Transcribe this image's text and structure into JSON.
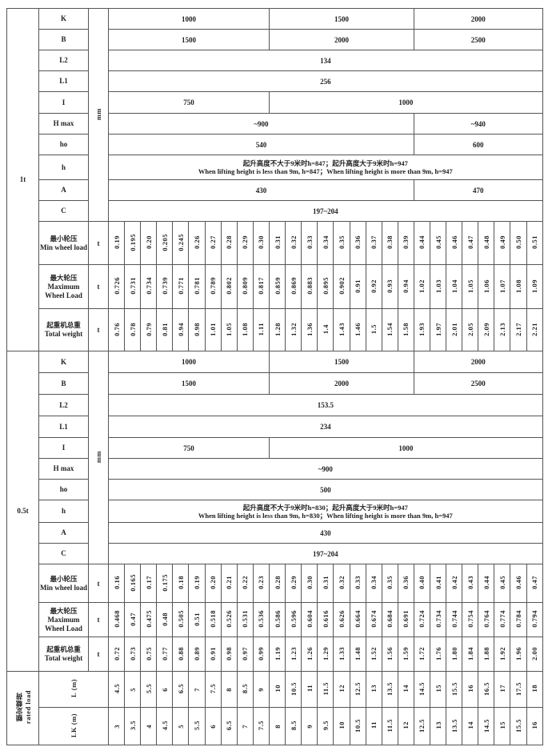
{
  "sections": [
    {
      "load": "1t",
      "unit_dims": "mm",
      "unit_loads": "t",
      "dims": [
        {
          "label": "K",
          "cells": [
            {
              "text": "1000",
              "span": 10
            },
            {
              "text": "1500",
              "span": 9
            },
            {
              "text": "2000",
              "span": 8
            }
          ]
        },
        {
          "label": "B",
          "cells": [
            {
              "text": "1500",
              "span": 10
            },
            {
              "text": "2000",
              "span": 9
            },
            {
              "text": "2500",
              "span": 8
            }
          ]
        },
        {
          "label": "L2",
          "cells": [
            {
              "text": "134",
              "span": 27
            }
          ]
        },
        {
          "label": "L1",
          "cells": [
            {
              "text": "256",
              "span": 27
            }
          ]
        },
        {
          "label": "I",
          "cells": [
            {
              "text": "750",
              "span": 10
            },
            {
              "text": "1000",
              "span": 17
            }
          ]
        },
        {
          "label": "H max",
          "cells": [
            {
              "text": "~900",
              "span": 19
            },
            {
              "text": "~940",
              "span": 8
            }
          ]
        },
        {
          "label": "ho",
          "cells": [
            {
              "text": "540",
              "span": 19
            },
            {
              "text": "600",
              "span": 8
            }
          ]
        },
        {
          "label": "h",
          "cells": [
            {
              "text": "起升高度不大于9米时h=847；起升高度大于9米时h=947",
              "text2": "When lifting height is less than 9m, h=847；When lifting height is more than 9m, h=947",
              "span": 27
            }
          ]
        },
        {
          "label": "A",
          "cells": [
            {
              "text": "430",
              "span": 19
            },
            {
              "text": "470",
              "span": 8
            }
          ]
        },
        {
          "label": "C",
          "cells": [
            {
              "text": "197~204",
              "span": 27
            }
          ]
        }
      ],
      "loads": [
        {
          "label_cn": "最小轮压",
          "label_en": "Min wheel load",
          "values": [
            "0.19",
            "0.195",
            "0.20",
            "0.205",
            "0.245",
            "0.26",
            "0.27",
            "0.28",
            "0.29",
            "0.30",
            "0.31",
            "0.32",
            "0.33",
            "0.34",
            "0.35",
            "0.36",
            "0.37",
            "0.38",
            "0.39",
            "0.44",
            "0.45",
            "0.46",
            "0.47",
            "0.48",
            "0.49",
            "0.50",
            "0.51"
          ]
        },
        {
          "label_cn": "最大轮压",
          "label_en": "Maximum Wheel Load",
          "values": [
            "0.726",
            "0.731",
            "0.734",
            "0.739",
            "0.771",
            "0.781",
            "0.789",
            "0.802",
            "0.809",
            "0.817",
            "0.859",
            "0.869",
            "0.883",
            "0.895",
            "0.902",
            "0.91",
            "0.92",
            "0.93",
            "0.94",
            "1.02",
            "1.03",
            "1.04",
            "1.05",
            "1.06",
            "1.07",
            "1.08",
            "1.09"
          ]
        },
        {
          "label_cn": "起重机总重",
          "label_en": "Total weight",
          "values": [
            "0.76",
            "0.78",
            "0.79",
            "0.81",
            "0.94",
            "0.98",
            "1.01",
            "1.05",
            "1.08",
            "1.11",
            "1.28",
            "1.32",
            "1.36",
            "1.4",
            "1.43",
            "1.46",
            "1.5",
            "1.54",
            "1.58",
            "1.93",
            "1.97",
            "2.01",
            "2.05",
            "2.09",
            "2.13",
            "2.17",
            "2.21"
          ]
        }
      ]
    },
    {
      "load": "0.5t",
      "unit_dims": "mm",
      "unit_loads": "t",
      "dims": [
        {
          "label": "K",
          "cells": [
            {
              "text": "1000",
              "span": 10
            },
            {
              "text": "1500",
              "span": 9
            },
            {
              "text": "2000",
              "span": 8
            }
          ]
        },
        {
          "label": "B",
          "cells": [
            {
              "text": "1500",
              "span": 10
            },
            {
              "text": "2000",
              "span": 9
            },
            {
              "text": "2500",
              "span": 8
            }
          ]
        },
        {
          "label": "L2",
          "cells": [
            {
              "text": "153.5",
              "span": 27
            }
          ]
        },
        {
          "label": "L1",
          "cells": [
            {
              "text": "234",
              "span": 27
            }
          ]
        },
        {
          "label": "I",
          "cells": [
            {
              "text": "750",
              "span": 10
            },
            {
              "text": "1000",
              "span": 17
            }
          ]
        },
        {
          "label": "H max",
          "cells": [
            {
              "text": "~900",
              "span": 27
            }
          ]
        },
        {
          "label": "ho",
          "cells": [
            {
              "text": "500",
              "span": 27
            }
          ]
        },
        {
          "label": "h",
          "cells": [
            {
              "text": "起升高度不大于9米时h=830；起升高度大于9米时h=947",
              "text2": "When lifting height is less than 9m, h=830；When lifting height is more than 9m, h=947",
              "span": 27
            }
          ]
        },
        {
          "label": "A",
          "cells": [
            {
              "text": "430",
              "span": 27
            }
          ]
        },
        {
          "label": "C",
          "cells": [
            {
              "text": "197~204",
              "span": 27
            }
          ]
        }
      ],
      "loads": [
        {
          "label_cn": "最小轮压",
          "label_en": "Min wheel load",
          "values": [
            "0.16",
            "0.165",
            "0.17",
            "0.175",
            "0.18",
            "0.19",
            "0.20",
            "0.21",
            "0.22",
            "0.23",
            "0.28",
            "0.29",
            "0.30",
            "0.31",
            "0.32",
            "0.33",
            "0.34",
            "0.35",
            "0.36",
            "0.40",
            "0.41",
            "0.42",
            "0.43",
            "0.44",
            "0.45",
            "0.46",
            "0.47"
          ]
        },
        {
          "label_cn": "最大轮压",
          "label_en": "Maximum Wheel Load",
          "values": [
            "0.468",
            "0.47",
            "0.475",
            "0.48",
            "0.505",
            "0.51",
            "0.518",
            "0.526",
            "0.531",
            "0.536",
            "0.586",
            "0.596",
            "0.604",
            "0.616",
            "0.626",
            "0.664",
            "0.674",
            "0.684",
            "0.691",
            "0.724",
            "0.734",
            "0.744",
            "0.754",
            "0.764",
            "0.774",
            "0.784",
            "0.794"
          ]
        },
        {
          "label_cn": "起重机总重",
          "label_en": "Total weight",
          "values": [
            "0.72",
            "0.73",
            "0.75",
            "0.77",
            "0.88",
            "0.89",
            "0.91",
            "0.98",
            "0.97",
            "0.99",
            "1.19",
            "1.23",
            "1.26",
            "1.29",
            "1.33",
            "1.48",
            "1.52",
            "1.56",
            "1.59",
            "1.72",
            "1.76",
            "1.80",
            "1.84",
            "1.88",
            "1.92",
            "1.96",
            "2.00"
          ]
        }
      ]
    }
  ],
  "rated_load": {
    "label_cn": "额定载荷",
    "label_en": "rated load",
    "rows": [
      {
        "label": "L",
        "unit": "(m)",
        "values": [
          "4.5",
          "5",
          "5.5",
          "6",
          "6.5",
          "7",
          "7.5",
          "8",
          "8.5",
          "9",
          "10",
          "10.5",
          "11",
          "11.5",
          "12",
          "12.5",
          "13",
          "13.5",
          "14",
          "14.5",
          "15",
          "15.5",
          "16",
          "16.5",
          "17",
          "17.5",
          "18"
        ]
      },
      {
        "label": "LK",
        "unit": "(m)",
        "values": [
          "3",
          "3.5",
          "4",
          "4.5",
          "5",
          "5.5",
          "6",
          "6.5",
          "7",
          "7.5",
          "8",
          "8.5",
          "9",
          "9.5",
          "10",
          "10.5",
          "11",
          "11.5",
          "12",
          "12.5",
          "13",
          "13.5",
          "14",
          "14.5",
          "15",
          "15.5",
          "16"
        ]
      }
    ]
  }
}
